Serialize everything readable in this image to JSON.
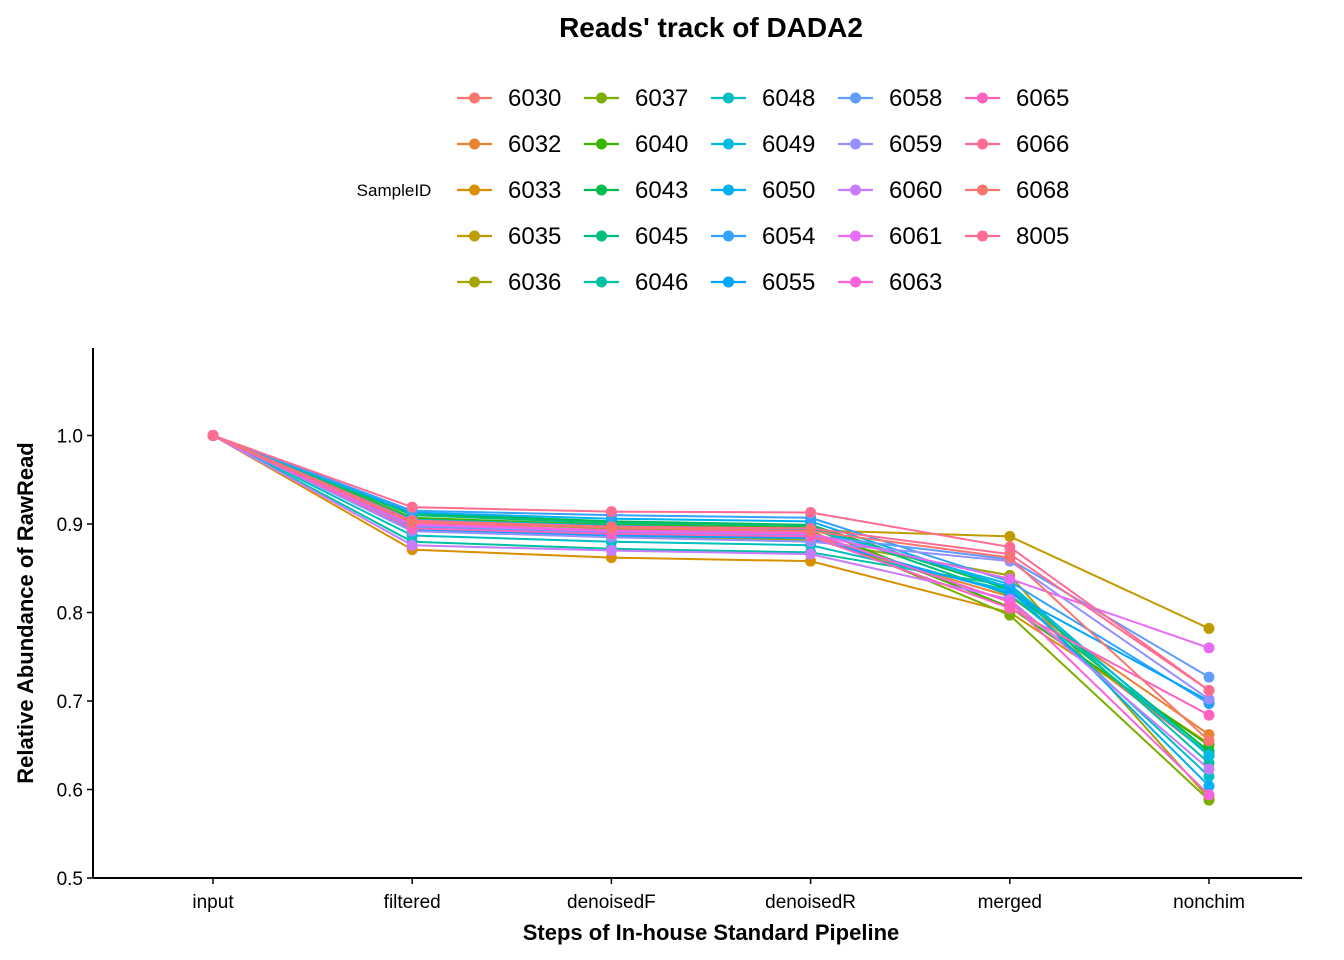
{
  "chart_data": {
    "type": "line",
    "title": "Reads' track of DADA2",
    "xlabel": "Steps of In-house Standard Pipeline",
    "ylabel": "Relative Abundance of RawRead",
    "legend_title": "SampleID",
    "legend_position": "top",
    "grid": false,
    "categories": [
      "input",
      "filtered",
      "denoisedF",
      "denoisedR",
      "merged",
      "nonchim"
    ],
    "ylim": [
      0.5,
      1.1
    ],
    "yticks": [
      "0.5",
      "0.6",
      "0.7",
      "0.8",
      "0.9",
      "1.0"
    ],
    "series": [
      {
        "name": "6030",
        "color": "#F8766D",
        "values": [
          1.0,
          0.902,
          0.892,
          0.888,
          0.812,
          0.64
        ]
      },
      {
        "name": "6032",
        "color": "#EA8331",
        "values": [
          1.0,
          0.898,
          0.888,
          0.884,
          0.818,
          0.662
        ]
      },
      {
        "name": "6033",
        "color": "#D89000",
        "values": [
          1.0,
          0.871,
          0.862,
          0.858,
          0.8,
          0.652
        ]
      },
      {
        "name": "6035",
        "color": "#C09B00",
        "values": [
          1.0,
          0.906,
          0.896,
          0.893,
          0.886,
          0.782
        ]
      },
      {
        "name": "6036",
        "color": "#A3A500",
        "values": [
          1.0,
          0.896,
          0.886,
          0.882,
          0.842,
          0.59
        ]
      },
      {
        "name": "6037",
        "color": "#7CAE00",
        "values": [
          1.0,
          0.903,
          0.895,
          0.892,
          0.797,
          0.588
        ]
      },
      {
        "name": "6040",
        "color": "#39B600",
        "values": [
          1.0,
          0.907,
          0.899,
          0.896,
          0.806,
          0.65
        ]
      },
      {
        "name": "6043",
        "color": "#00BB4E",
        "values": [
          1.0,
          0.912,
          0.903,
          0.899,
          0.826,
          0.643
        ]
      },
      {
        "name": "6045",
        "color": "#00BF7D",
        "values": [
          1.0,
          0.91,
          0.901,
          0.898,
          0.82,
          0.64
        ]
      },
      {
        "name": "6046",
        "color": "#00C1A3",
        "values": [
          1.0,
          0.88,
          0.872,
          0.868,
          0.83,
          0.63
        ]
      },
      {
        "name": "6048",
        "color": "#00BFC4",
        "values": [
          1.0,
          0.887,
          0.88,
          0.876,
          0.825,
          0.615
        ]
      },
      {
        "name": "6049",
        "color": "#00BAE0",
        "values": [
          1.0,
          0.905,
          0.898,
          0.894,
          0.832,
          0.638
        ]
      },
      {
        "name": "6050",
        "color": "#00B0F6",
        "values": [
          1.0,
          0.913,
          0.906,
          0.903,
          0.828,
          0.604
        ]
      },
      {
        "name": "6054",
        "color": "#35A2FF",
        "values": [
          1.0,
          0.915,
          0.91,
          0.907,
          0.835,
          0.697
        ]
      },
      {
        "name": "6055",
        "color": "#00A5FF",
        "values": [
          1.0,
          0.894,
          0.887,
          0.884,
          0.822,
          0.7
        ]
      },
      {
        "name": "6058",
        "color": "#619CFF",
        "values": [
          1.0,
          0.897,
          0.89,
          0.887,
          0.86,
          0.727
        ]
      },
      {
        "name": "6059",
        "color": "#9590FF",
        "values": [
          1.0,
          0.892,
          0.885,
          0.88,
          0.858,
          0.702
        ]
      },
      {
        "name": "6060",
        "color": "#C77CFF",
        "values": [
          1.0,
          0.876,
          0.87,
          0.866,
          0.815,
          0.623
        ]
      },
      {
        "name": "6061",
        "color": "#E76BF3",
        "values": [
          1.0,
          0.899,
          0.892,
          0.889,
          0.838,
          0.76
        ]
      },
      {
        "name": "6063",
        "color": "#FA62DB",
        "values": [
          1.0,
          0.9,
          0.893,
          0.89,
          0.812,
          0.594
        ]
      },
      {
        "name": "6065",
        "color": "#FF62BC",
        "values": [
          1.0,
          0.895,
          0.889,
          0.886,
          0.805,
          0.684
        ]
      },
      {
        "name": "6066",
        "color": "#FF6C91",
        "values": [
          1.0,
          0.904,
          0.897,
          0.895,
          0.866,
          0.712
        ]
      },
      {
        "name": "6068",
        "color": "#F8766D",
        "values": [
          1.0,
          0.902,
          0.896,
          0.892,
          0.862,
          0.655
        ]
      },
      {
        "name": "8005",
        "color": "#FF6C91",
        "values": [
          1.0,
          0.919,
          0.914,
          0.913,
          0.874,
          0.712
        ]
      }
    ]
  }
}
